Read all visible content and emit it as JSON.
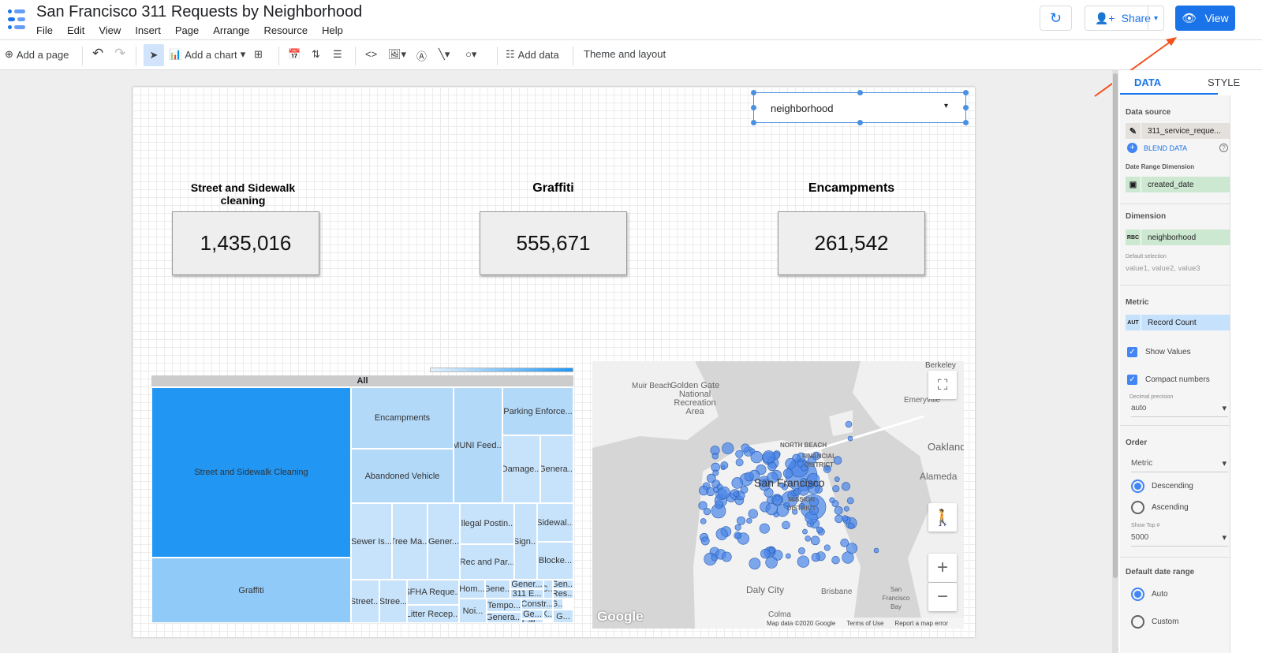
{
  "header": {
    "title": "San Francisco 311 Requests by Neighborhood",
    "menu": [
      "File",
      "Edit",
      "View",
      "Insert",
      "Page",
      "Arrange",
      "Resource",
      "Help"
    ],
    "share_label": "Share",
    "view_label": "View",
    "accent": "#1a73e8"
  },
  "toolbar": {
    "add_page": "Add a page",
    "add_chart": "Add a chart",
    "add_data": "Add data",
    "theme_layout": "Theme and layout"
  },
  "filter": {
    "value": "neighborhood"
  },
  "scorecards": [
    {
      "title": "Street and Sidewalk cleaning",
      "value": "1,435,016"
    },
    {
      "title": "Graffiti",
      "value": "555,671"
    },
    {
      "title": "Encampments",
      "value": "261,542"
    }
  ],
  "treemap": {
    "root": "All",
    "cells": [
      "Street and Sidewalk Cleaning",
      "Graffiti",
      "Encampments",
      "Abandoned Vehicle",
      "MUNI Feed...",
      "Parking Enforce...",
      "Damage...",
      "Genera...",
      "Sewer Is...",
      "Tree Ma...",
      "Gener...",
      "Illegal Postin...",
      "Rec and Par...",
      "Sign...",
      "Sidewal...",
      "Blocke...",
      "Street...",
      "Stree...",
      "SFHA Reque...",
      "Litter Recep...",
      "Hom...",
      "Gene...",
      "Noi...",
      "Tempo...",
      "Genera...",
      "Gener...",
      "311 E...",
      "C...",
      "Gen...",
      "Res...",
      "Constr...",
      "G...",
      "K...",
      "Ge...",
      "Cat...",
      "G..."
    ],
    "colors": {
      "max": "#2196f3",
      "mid": "#90caf9",
      "min": "#c7e3fb"
    }
  },
  "map": {
    "labels": [
      "Muir Beach",
      "Golden Gate National Recreation Area",
      "Berkeley",
      "Emeryville",
      "Oakland",
      "Alameda",
      "San Francisco",
      "NORTH BEACH",
      "FINANCIAL DISTRICT",
      "MISSION DISTRICT",
      "Daly City",
      "Brisbane",
      "Colma",
      "San Francisco Bay"
    ],
    "logo": "Google",
    "attribution": "Map data ©2020 Google",
    "terms": "Terms of Use",
    "report": "Report a map error",
    "bubble_color": "#4a86e8"
  },
  "panel": {
    "tabs": [
      "DATA",
      "STYLE"
    ],
    "data_source_label": "Data source",
    "data_source": "311_service_reque...",
    "blend": "BLEND DATA",
    "date_range_dim_label": "Date Range Dimension",
    "date_range_dim": "created_date",
    "dimension_label": "Dimension",
    "dimension": "neighborhood",
    "dimension_type": "RBC",
    "default_selection_label": "Default selection",
    "default_selection": "value1, value2, value3",
    "metric_label": "Metric",
    "metric": "Record Count",
    "metric_type": "AUT",
    "show_values": "Show Values",
    "compact_numbers": "Compact numbers",
    "decimal_label": "Decimal precision",
    "decimal": "auto",
    "order_label": "Order",
    "order_by": "Metric",
    "descending": "Descending",
    "ascending": "Ascending",
    "show_top_label": "Show Top #",
    "show_top": "5000",
    "date_range_label": "Default date range",
    "auto": "Auto",
    "custom": "Custom"
  }
}
